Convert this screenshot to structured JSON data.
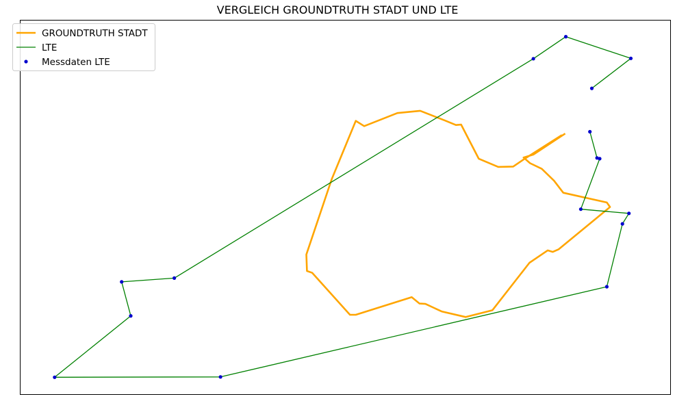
{
  "chart_data": {
    "type": "line",
    "title": "VERGLEICH GROUNDTRUTH STADT UND LTE",
    "xlabel": "",
    "ylabel": "",
    "axis_ticks": false,
    "grid": false,
    "xlim": [
      0,
      1000
    ],
    "ylim": [
      0,
      1000
    ],
    "legend": {
      "position": "top-left",
      "entries": [
        "GROUNDTRUTH STADT",
        "LTE",
        "Messdaten LTE"
      ]
    },
    "series": [
      {
        "name": "GROUNDTRUTH STADT",
        "kind": "line",
        "color": "#FFA500",
        "points": [
          [
            838,
            697
          ],
          [
            789,
            641
          ],
          [
            774,
            633
          ],
          [
            784,
            618
          ],
          [
            802,
            603
          ],
          [
            821,
            571
          ],
          [
            835,
            539
          ],
          [
            902,
            513
          ],
          [
            907,
            501
          ],
          [
            828,
            388
          ],
          [
            819,
            381
          ],
          [
            811,
            385
          ],
          [
            783,
            352
          ],
          [
            726,
            225
          ],
          [
            685,
            207
          ],
          [
            648,
            222
          ],
          [
            623,
            242
          ],
          [
            614,
            243
          ],
          [
            602,
            260
          ],
          [
            516,
            213
          ],
          [
            507,
            213
          ],
          [
            449,
            325
          ],
          [
            441,
            330
          ],
          [
            440,
            374
          ],
          [
            479,
            575
          ],
          [
            516,
            731
          ],
          [
            529,
            717
          ],
          [
            580,
            752
          ],
          [
            615,
            758
          ],
          [
            653,
            732
          ],
          [
            670,
            720
          ],
          [
            678,
            721
          ],
          [
            705,
            630
          ],
          [
            735,
            608
          ],
          [
            758,
            609
          ],
          [
            775,
            629
          ],
          [
            833,
            693
          ]
        ]
      },
      {
        "name": "LTE",
        "kind": "line",
        "color": "#008000",
        "points": [
          [
            879,
            818
          ],
          [
            939,
            898
          ],
          [
            839,
            956
          ],
          [
            789,
            897
          ],
          [
            237,
            311
          ],
          [
            156,
            301
          ],
          [
            170,
            210
          ],
          [
            53,
            46
          ],
          [
            308,
            47
          ],
          [
            902,
            288
          ],
          [
            926,
            456
          ],
          [
            936,
            484
          ],
          [
            862,
            495
          ],
          [
            891,
            630
          ],
          [
            887,
            632
          ],
          [
            876,
            702
          ]
        ]
      },
      {
        "name": "Messdaten LTE",
        "kind": "scatter",
        "color": "#0000CD",
        "points": [
          [
            879,
            818
          ],
          [
            939,
            898
          ],
          [
            839,
            956
          ],
          [
            789,
            897
          ],
          [
            237,
            311
          ],
          [
            156,
            301
          ],
          [
            170,
            210
          ],
          [
            53,
            46
          ],
          [
            308,
            47
          ],
          [
            902,
            288
          ],
          [
            926,
            456
          ],
          [
            936,
            484
          ],
          [
            862,
            495
          ],
          [
            891,
            630
          ],
          [
            887,
            632
          ],
          [
            876,
            702
          ]
        ]
      }
    ]
  }
}
